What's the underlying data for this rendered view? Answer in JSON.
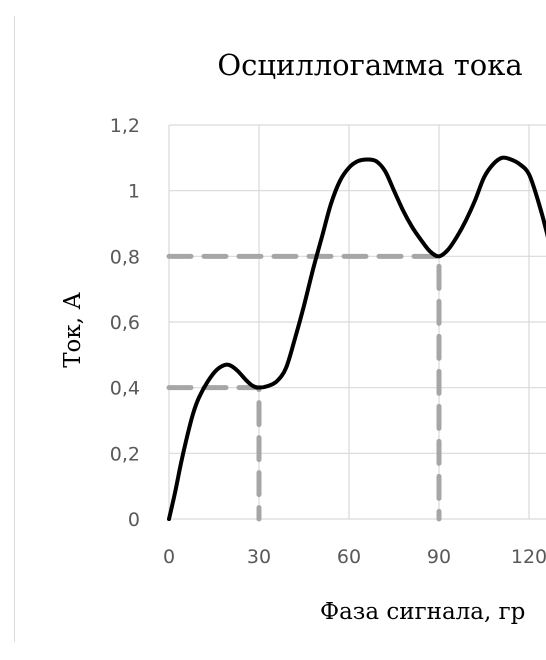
{
  "chart_data": {
    "type": "line",
    "title": "Осциллогамма тока",
    "xlabel": "Фаза сигнала, гр",
    "ylabel": "Ток, А",
    "x_ticks": [
      "0",
      "30",
      "60",
      "90",
      "120"
    ],
    "y_ticks": [
      "0",
      "0,2",
      "0,4",
      "0,6",
      "0,8",
      "1",
      "1,2"
    ],
    "y_tick_values": [
      0,
      0.2,
      0.4,
      0.6,
      0.8,
      1,
      1.2
    ],
    "x_tick_values": [
      0,
      30,
      60,
      90,
      120
    ],
    "xlim": [
      0,
      127
    ],
    "ylim": [
      0,
      1.2
    ],
    "grid": true,
    "series": [
      {
        "color": "#000000",
        "x": [
          0,
          2,
          4,
          6,
          8,
          10,
          13,
          16,
          19,
          21,
          23,
          26,
          28,
          30,
          33,
          36,
          39,
          42,
          45,
          48,
          51,
          54,
          57,
          60,
          63,
          66,
          69,
          72,
          75,
          78,
          81,
          84,
          87,
          90,
          93,
          96,
          99,
          102,
          105,
          108,
          111,
          114,
          117,
          120,
          123,
          126,
          127
        ],
        "y": [
          0,
          0.08,
          0.17,
          0.25,
          0.32,
          0.37,
          0.42,
          0.455,
          0.47,
          0.465,
          0.45,
          0.42,
          0.405,
          0.4,
          0.405,
          0.42,
          0.46,
          0.55,
          0.65,
          0.76,
          0.86,
          0.96,
          1.03,
          1.07,
          1.09,
          1.095,
          1.09,
          1.06,
          1.0,
          0.94,
          0.89,
          0.85,
          0.815,
          0.8,
          0.82,
          0.86,
          0.91,
          0.97,
          1.04,
          1.08,
          1.1,
          1.095,
          1.08,
          1.05,
          0.97,
          0.87,
          0.82
        ]
      }
    ],
    "reference_lines": [
      {
        "color": "#a6a6a6",
        "x": [
          0,
          30,
          30
        ],
        "y": [
          0.4,
          0.4,
          0
        ]
      },
      {
        "color": "#a6a6a6",
        "x": [
          0,
          90,
          90
        ],
        "y": [
          0.8,
          0.8,
          0
        ]
      }
    ]
  }
}
